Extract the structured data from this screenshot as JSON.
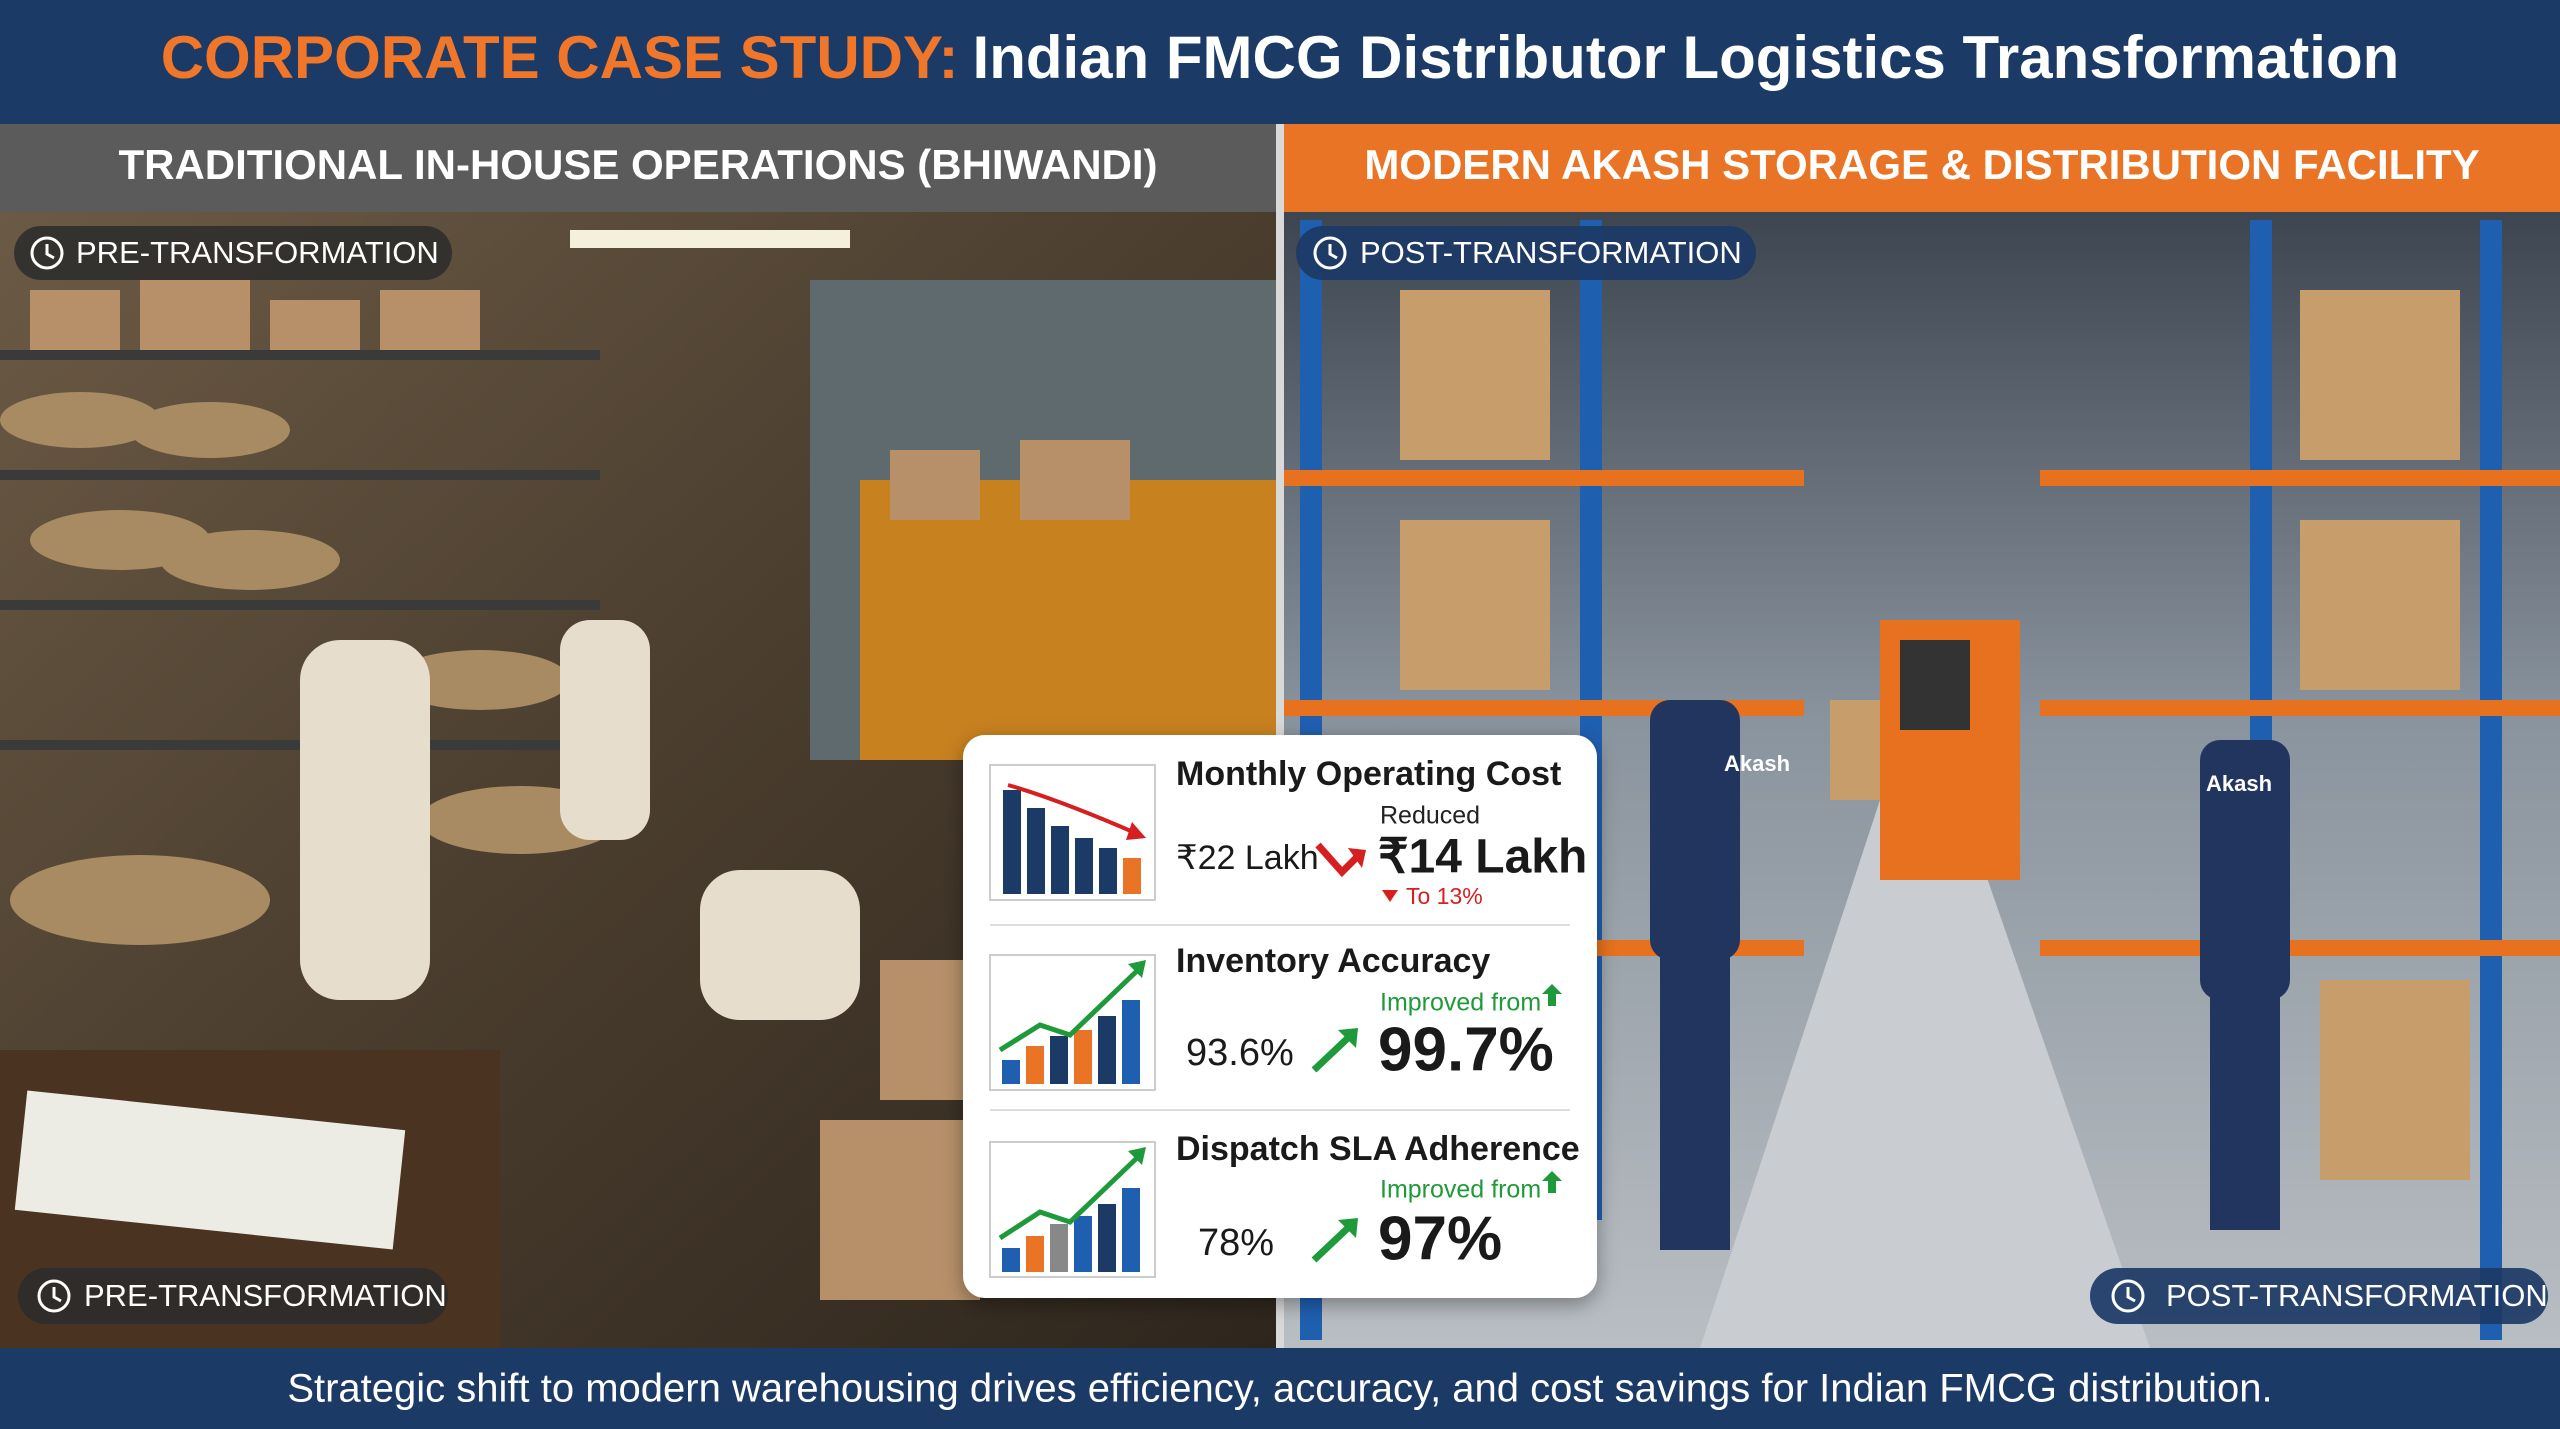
{
  "header": {
    "title_highlight": "CORPORATE CASE STUDY:",
    "title_rest": "Indian FMCG Distributor Logistics Transformation"
  },
  "left_panel": {
    "title": "TRADITIONAL IN-HOUSE OPERATIONS (BHIWANDI)",
    "badge_top": "PRE-TRANSFORMATION",
    "badge_bottom": "PRE-TRANSFORMATION"
  },
  "right_panel": {
    "title": "MODERN AKASH STORAGE & DISTRIBUTION FACILITY",
    "badge_top": "POST-TRANSFORMATION",
    "badge_bottom": "POST-TRANSFORMATION",
    "uniform_labels": [
      "Akash",
      "Akash"
    ]
  },
  "metrics": [
    {
      "title": "Monthly Operating Cost",
      "note": "Reduced",
      "before": "₹22 Lakh",
      "after": "₹14 Lakh",
      "change": "To 13%"
    },
    {
      "title": "Inventory Accuracy",
      "note": "Improved from",
      "before": "93.6%",
      "after": "99.7%"
    },
    {
      "title": "Dispatch SLA Adherence",
      "note": "Improved from",
      "before": "78%",
      "after": "97%"
    }
  ],
  "footer": {
    "caption": "Strategic shift to modern warehousing drives efficiency, accuracy, and cost savings for Indian FMCG distribution."
  }
}
